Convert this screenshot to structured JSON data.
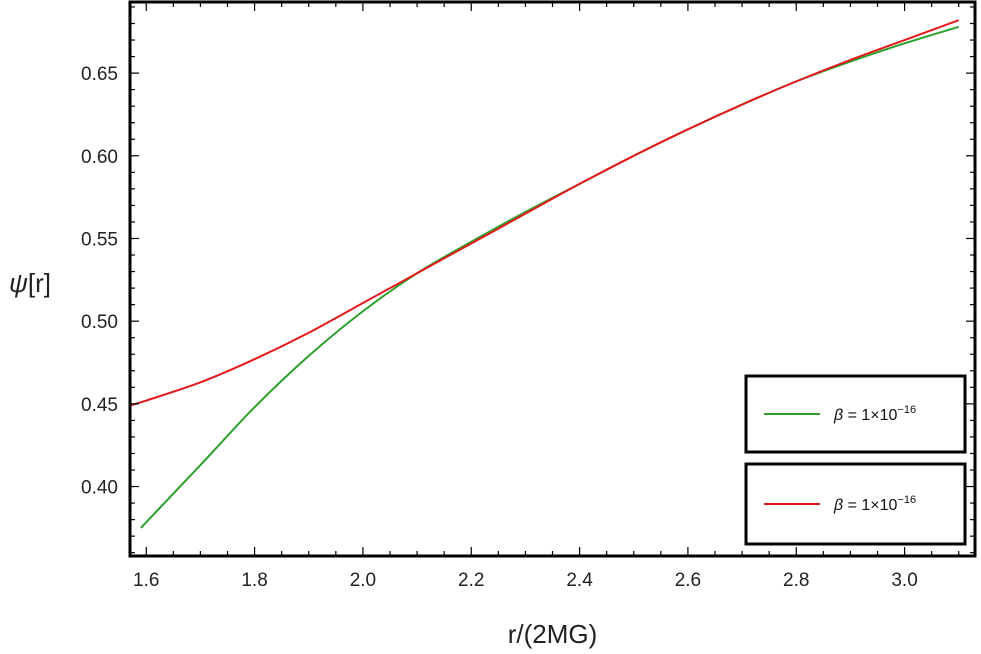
{
  "chart_data": {
    "type": "line",
    "title": "",
    "xlabel": "r/(2MG)",
    "ylabel_main": "ψ",
    "ylabel_suffix": "[r]",
    "xlim": [
      1.57,
      3.13
    ],
    "ylim": [
      0.358,
      0.693
    ],
    "xticks": [
      1.6,
      1.8,
      2.0,
      2.2,
      2.4,
      2.6,
      2.8,
      3.0
    ],
    "xtick_labels": [
      "1.6",
      "1.8",
      "2.0",
      "2.2",
      "2.4",
      "2.6",
      "2.8",
      "3.0"
    ],
    "yticks": [
      0.4,
      0.45,
      0.5,
      0.55,
      0.6,
      0.65
    ],
    "ytick_labels": [
      "0.40",
      "0.45",
      "0.50",
      "0.55",
      "0.60",
      "0.65"
    ],
    "grid": false,
    "legend_position": "bottom-right",
    "series": [
      {
        "name": "β = 1×10",
        "name_superscript": "−16",
        "color": "#2ca02c",
        "x": [
          1.59,
          1.7,
          1.8,
          1.9,
          2.0,
          2.1,
          2.2,
          2.3,
          2.4,
          2.5,
          2.6,
          2.7,
          2.8,
          2.9,
          3.0,
          3.1
        ],
        "y": [
          0.375,
          0.413,
          0.448,
          0.479,
          0.506,
          0.529,
          0.548,
          0.566,
          0.583,
          0.6,
          0.616,
          0.631,
          0.645,
          0.657,
          0.668,
          0.678
        ]
      },
      {
        "name": "β = 1×10",
        "name_superscript": "−16",
        "color": "#e31a1c",
        "x": [
          1.57,
          1.6,
          1.7,
          1.8,
          1.9,
          2.0,
          2.1,
          2.2,
          2.3,
          2.4,
          2.5,
          2.6,
          2.7,
          2.8,
          2.9,
          3.0,
          3.1
        ],
        "y": [
          0.449,
          0.452,
          0.463,
          0.477,
          0.493,
          0.511,
          0.529,
          0.547,
          0.565,
          0.583,
          0.6,
          0.616,
          0.631,
          0.645,
          0.658,
          0.67,
          0.682
        ]
      }
    ]
  }
}
